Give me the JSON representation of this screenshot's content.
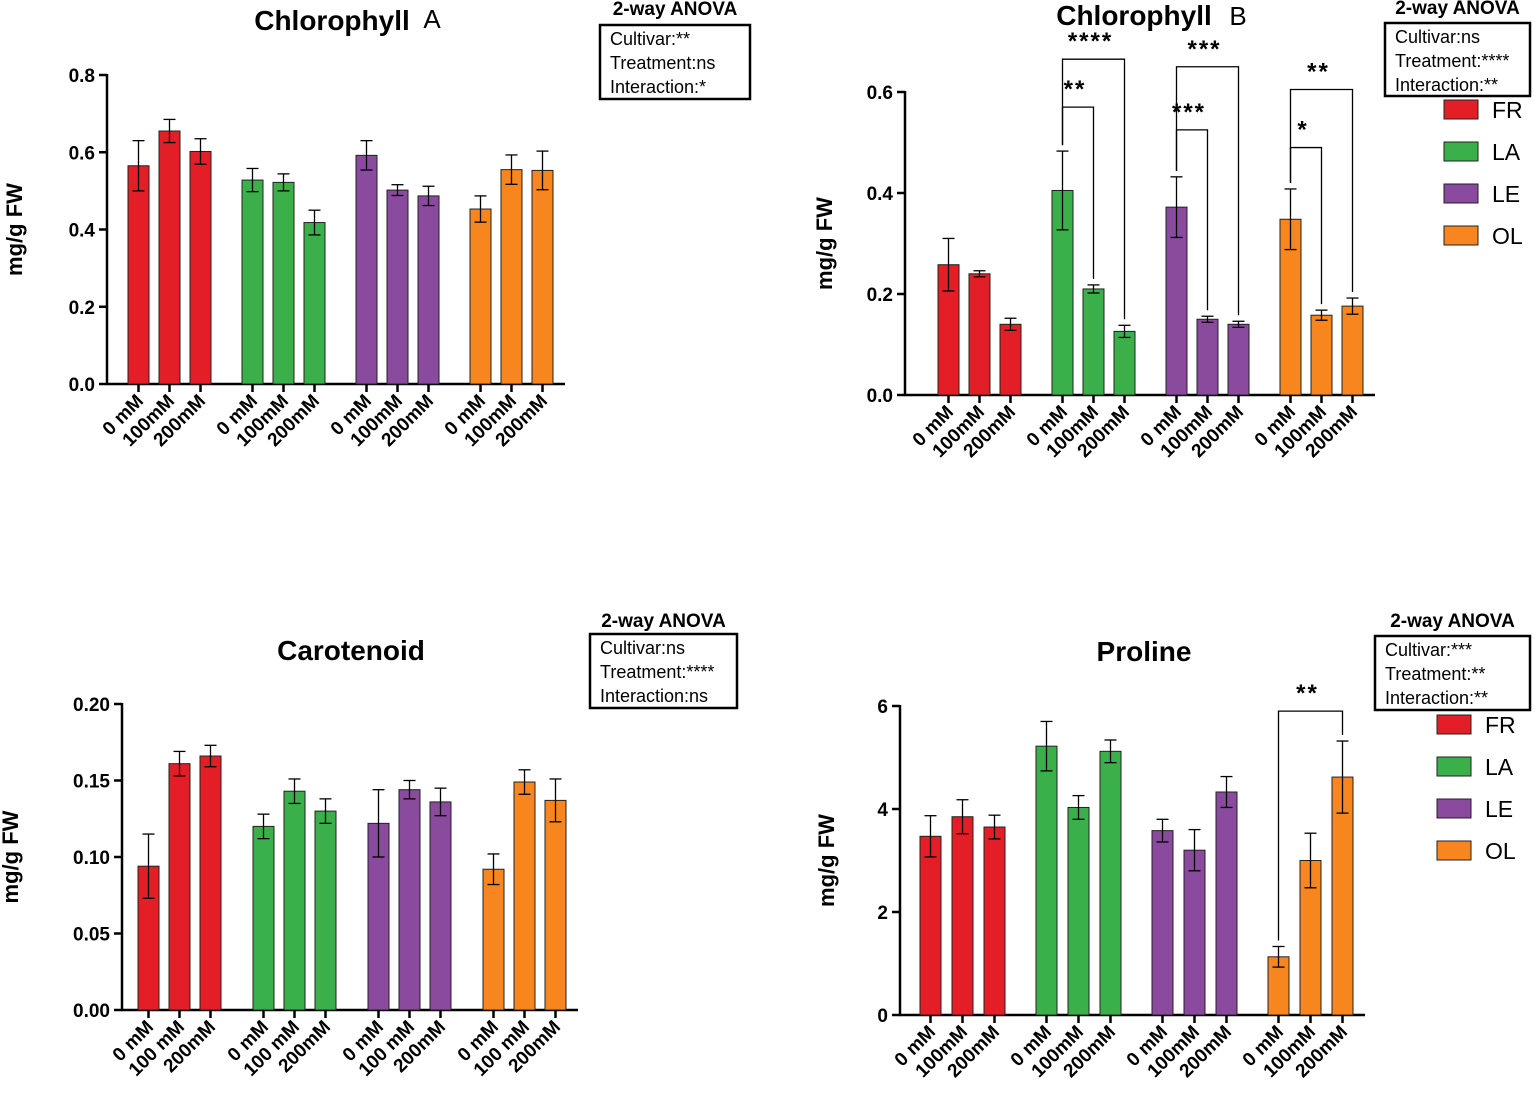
{
  "colors": {
    "FR": "#e41e26",
    "LA": "#3bb04a",
    "LE": "#8a4a9e",
    "OL": "#f7861e"
  },
  "chart_data": [
    {
      "id": "A",
      "type": "bar",
      "title": "Chlorophyll",
      "panel_letter": "A",
      "ylabel": "mg/g FW",
      "ylim": [
        0,
        0.8
      ],
      "yticks": [
        "0.0",
        "0.2",
        "0.4",
        "0.6",
        "0.8"
      ],
      "groups": [
        "FR",
        "LA",
        "LE",
        "OL"
      ],
      "categories": [
        "0 mM",
        "100mM",
        "200mM"
      ],
      "series": [
        {
          "name": "FR",
          "values": [
            0.565,
            0.655,
            0.602
          ],
          "errors": [
            0.065,
            0.03,
            0.033
          ]
        },
        {
          "name": "LA",
          "values": [
            0.528,
            0.522,
            0.418
          ],
          "errors": [
            0.03,
            0.022,
            0.032
          ]
        },
        {
          "name": "LE",
          "values": [
            0.592,
            0.502,
            0.487
          ],
          "errors": [
            0.038,
            0.014,
            0.025
          ]
        },
        {
          "name": "OL",
          "values": [
            0.453,
            0.555,
            0.553
          ],
          "errors": [
            0.034,
            0.038,
            0.05
          ]
        }
      ],
      "anova": {
        "heading": "2-way ANOVA",
        "lines": [
          "Cultivar:**",
          "Treatment:ns",
          "Interaction:*"
        ]
      },
      "significance": []
    },
    {
      "id": "B",
      "type": "bar",
      "title": "Chlorophyll",
      "panel_letter": "B",
      "ylabel": "mg/g FW",
      "ylim": [
        0,
        0.6
      ],
      "yticks": [
        "0.0",
        "0.2",
        "0.4",
        "0.6"
      ],
      "groups": [
        "FR",
        "LA",
        "LE",
        "OL"
      ],
      "categories": [
        "0 mM",
        "100mM",
        "200mM"
      ],
      "series": [
        {
          "name": "FR",
          "values": [
            0.258,
            0.24,
            0.14
          ],
          "errors": [
            0.052,
            0.006,
            0.012
          ]
        },
        {
          "name": "LA",
          "values": [
            0.405,
            0.21,
            0.126
          ],
          "errors": [
            0.078,
            0.008,
            0.012
          ]
        },
        {
          "name": "LE",
          "values": [
            0.372,
            0.15,
            0.14
          ],
          "errors": [
            0.06,
            0.006,
            0.006
          ]
        },
        {
          "name": "OL",
          "values": [
            0.348,
            0.158,
            0.176
          ],
          "errors": [
            0.06,
            0.01,
            0.016
          ]
        }
      ],
      "anova": {
        "heading": "2-way ANOVA",
        "lines": [
          "Cultivar:ns",
          "Treatment:****",
          "Interaction:**"
        ]
      },
      "legend": [
        "FR",
        "LA",
        "LE",
        "OL"
      ],
      "significance": [
        {
          "group": 1,
          "from": 0,
          "to": 1,
          "label": "**",
          "level": 0.57
        },
        {
          "group": 1,
          "from": 0,
          "to": 2,
          "label": "****",
          "level": 0.665
        },
        {
          "group": 2,
          "from": 0,
          "to": 1,
          "label": "***",
          "level": 0.525
        },
        {
          "group": 2,
          "from": 0,
          "to": 2,
          "label": "***",
          "level": 0.65
        },
        {
          "group": 3,
          "from": 0,
          "to": 1,
          "label": "*",
          "level": 0.49
        },
        {
          "group": 3,
          "from": 0,
          "to": 2,
          "label": "**",
          "level": 0.605
        }
      ]
    },
    {
      "id": "C",
      "type": "bar",
      "title": "Carotenoid",
      "ylabel": "mg/g FW",
      "ylim": [
        0,
        0.2
      ],
      "yticks": [
        "0.00",
        "0.05",
        "0.10",
        "0.15",
        "0.20"
      ],
      "groups": [
        "FR",
        "LA",
        "LE",
        "OL"
      ],
      "categories": [
        "0 mM",
        "100 mM",
        "200mM"
      ],
      "series": [
        {
          "name": "FR",
          "values": [
            0.094,
            0.161,
            0.166
          ],
          "errors": [
            0.021,
            0.008,
            0.007
          ]
        },
        {
          "name": "LA",
          "values": [
            0.12,
            0.143,
            0.13
          ],
          "errors": [
            0.008,
            0.008,
            0.008
          ]
        },
        {
          "name": "LE",
          "values": [
            0.122,
            0.144,
            0.136
          ],
          "errors": [
            0.022,
            0.006,
            0.009
          ]
        },
        {
          "name": "OL",
          "values": [
            0.092,
            0.149,
            0.137
          ],
          "errors": [
            0.01,
            0.008,
            0.014
          ]
        }
      ],
      "anova": {
        "heading": "2-way ANOVA",
        "lines": [
          "Cultivar:ns",
          "Treatment:****",
          "Interaction:ns"
        ]
      },
      "significance": []
    },
    {
      "id": "D",
      "type": "bar",
      "title": "Proline",
      "ylabel": "mg/g FW",
      "ylim": [
        0,
        6
      ],
      "yticks": [
        "0",
        "2",
        "4",
        "6"
      ],
      "groups": [
        "FR",
        "LA",
        "LE",
        "OL"
      ],
      "categories": [
        "0 mM",
        "100mM",
        "200mM"
      ],
      "series": [
        {
          "name": "FR",
          "values": [
            3.47,
            3.85,
            3.65
          ],
          "errors": [
            0.4,
            0.33,
            0.23
          ]
        },
        {
          "name": "LA",
          "values": [
            5.22,
            4.03,
            5.12
          ],
          "errors": [
            0.48,
            0.23,
            0.22
          ]
        },
        {
          "name": "LE",
          "values": [
            3.58,
            3.2,
            4.33
          ],
          "errors": [
            0.22,
            0.4,
            0.3
          ]
        },
        {
          "name": "OL",
          "values": [
            1.13,
            3.0,
            4.62
          ],
          "errors": [
            0.2,
            0.53,
            0.7
          ]
        }
      ],
      "anova": {
        "heading": "2-way ANOVA",
        "lines": [
          "Cultivar:***",
          "Treatment:**",
          "Interaction:**"
        ]
      },
      "legend": [
        "FR",
        "LA",
        "LE",
        "OL"
      ],
      "significance": [
        {
          "group": 3,
          "from": 0,
          "to": 2,
          "label": "**",
          "level": 5.9
        }
      ]
    }
  ]
}
